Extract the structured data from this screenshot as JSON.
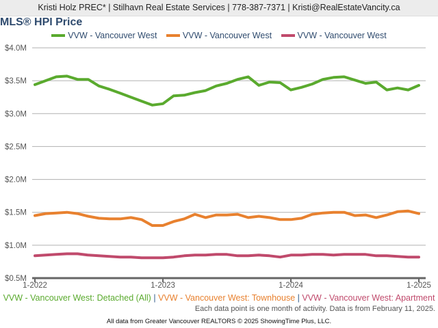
{
  "header": {
    "contact": "Kristi Holz PREC* | Stilhavn Real Estate Services | 778-387-7371 | Kristi@RealEstateVancity.ca"
  },
  "chart_data": {
    "type": "line",
    "title": "MLS® HPI Price",
    "xlabel": "",
    "ylabel": "",
    "x_start": "1-2022",
    "x_end": "1-2025",
    "x_tick_labels": [
      "1-2022",
      "1-2023",
      "1-2024",
      "1-2025"
    ],
    "y_tick_labels": [
      "$0.5M",
      "$1.0M",
      "$1.5M",
      "$2.0M",
      "$2.5M",
      "$3.0M",
      "$3.5M",
      "$4.0M"
    ],
    "ylim": [
      0.5,
      4.0
    ],
    "y_unit": "$M",
    "grid": true,
    "legend_position": "top",
    "series": [
      {
        "name": "VVW - Vancouver West",
        "full_label": "VVW - Vancouver West: Detached (All)",
        "color": "#5aaa2e",
        "values": [
          3.44,
          3.5,
          3.56,
          3.57,
          3.52,
          3.52,
          3.42,
          3.37,
          3.31,
          3.25,
          3.19,
          3.13,
          3.15,
          3.27,
          3.28,
          3.32,
          3.35,
          3.42,
          3.46,
          3.52,
          3.56,
          3.43,
          3.48,
          3.47,
          3.36,
          3.4,
          3.45,
          3.52,
          3.55,
          3.56,
          3.51,
          3.46,
          3.48,
          3.36,
          3.39,
          3.36,
          3.43
        ]
      },
      {
        "name": "VVW - Vancouver West",
        "full_label": "VVW - Vancouver West: Townhouse",
        "color": "#e8812f",
        "values": [
          1.45,
          1.48,
          1.49,
          1.5,
          1.48,
          1.44,
          1.41,
          1.4,
          1.4,
          1.42,
          1.39,
          1.3,
          1.3,
          1.36,
          1.4,
          1.47,
          1.42,
          1.46,
          1.46,
          1.47,
          1.42,
          1.44,
          1.42,
          1.39,
          1.39,
          1.41,
          1.47,
          1.49,
          1.5,
          1.5,
          1.45,
          1.46,
          1.42,
          1.46,
          1.51,
          1.52,
          1.48
        ]
      },
      {
        "name": "VVW - Vancouver West",
        "full_label": "VVW - Vancouver West: Apartment",
        "color": "#c04a6c",
        "values": [
          0.84,
          0.85,
          0.86,
          0.87,
          0.87,
          0.85,
          0.84,
          0.83,
          0.82,
          0.82,
          0.81,
          0.81,
          0.81,
          0.82,
          0.84,
          0.85,
          0.85,
          0.86,
          0.86,
          0.84,
          0.84,
          0.85,
          0.84,
          0.82,
          0.85,
          0.85,
          0.86,
          0.86,
          0.85,
          0.86,
          0.86,
          0.86,
          0.84,
          0.84,
          0.83,
          0.82,
          0.82
        ]
      }
    ]
  },
  "footer": {
    "separator": "|",
    "note": "Each data point is one month of activity. Data is from February 11, 2025.",
    "source": "All data from Greater Vancouver REALTORS © 2025 ShowingTime Plus, LLC."
  }
}
